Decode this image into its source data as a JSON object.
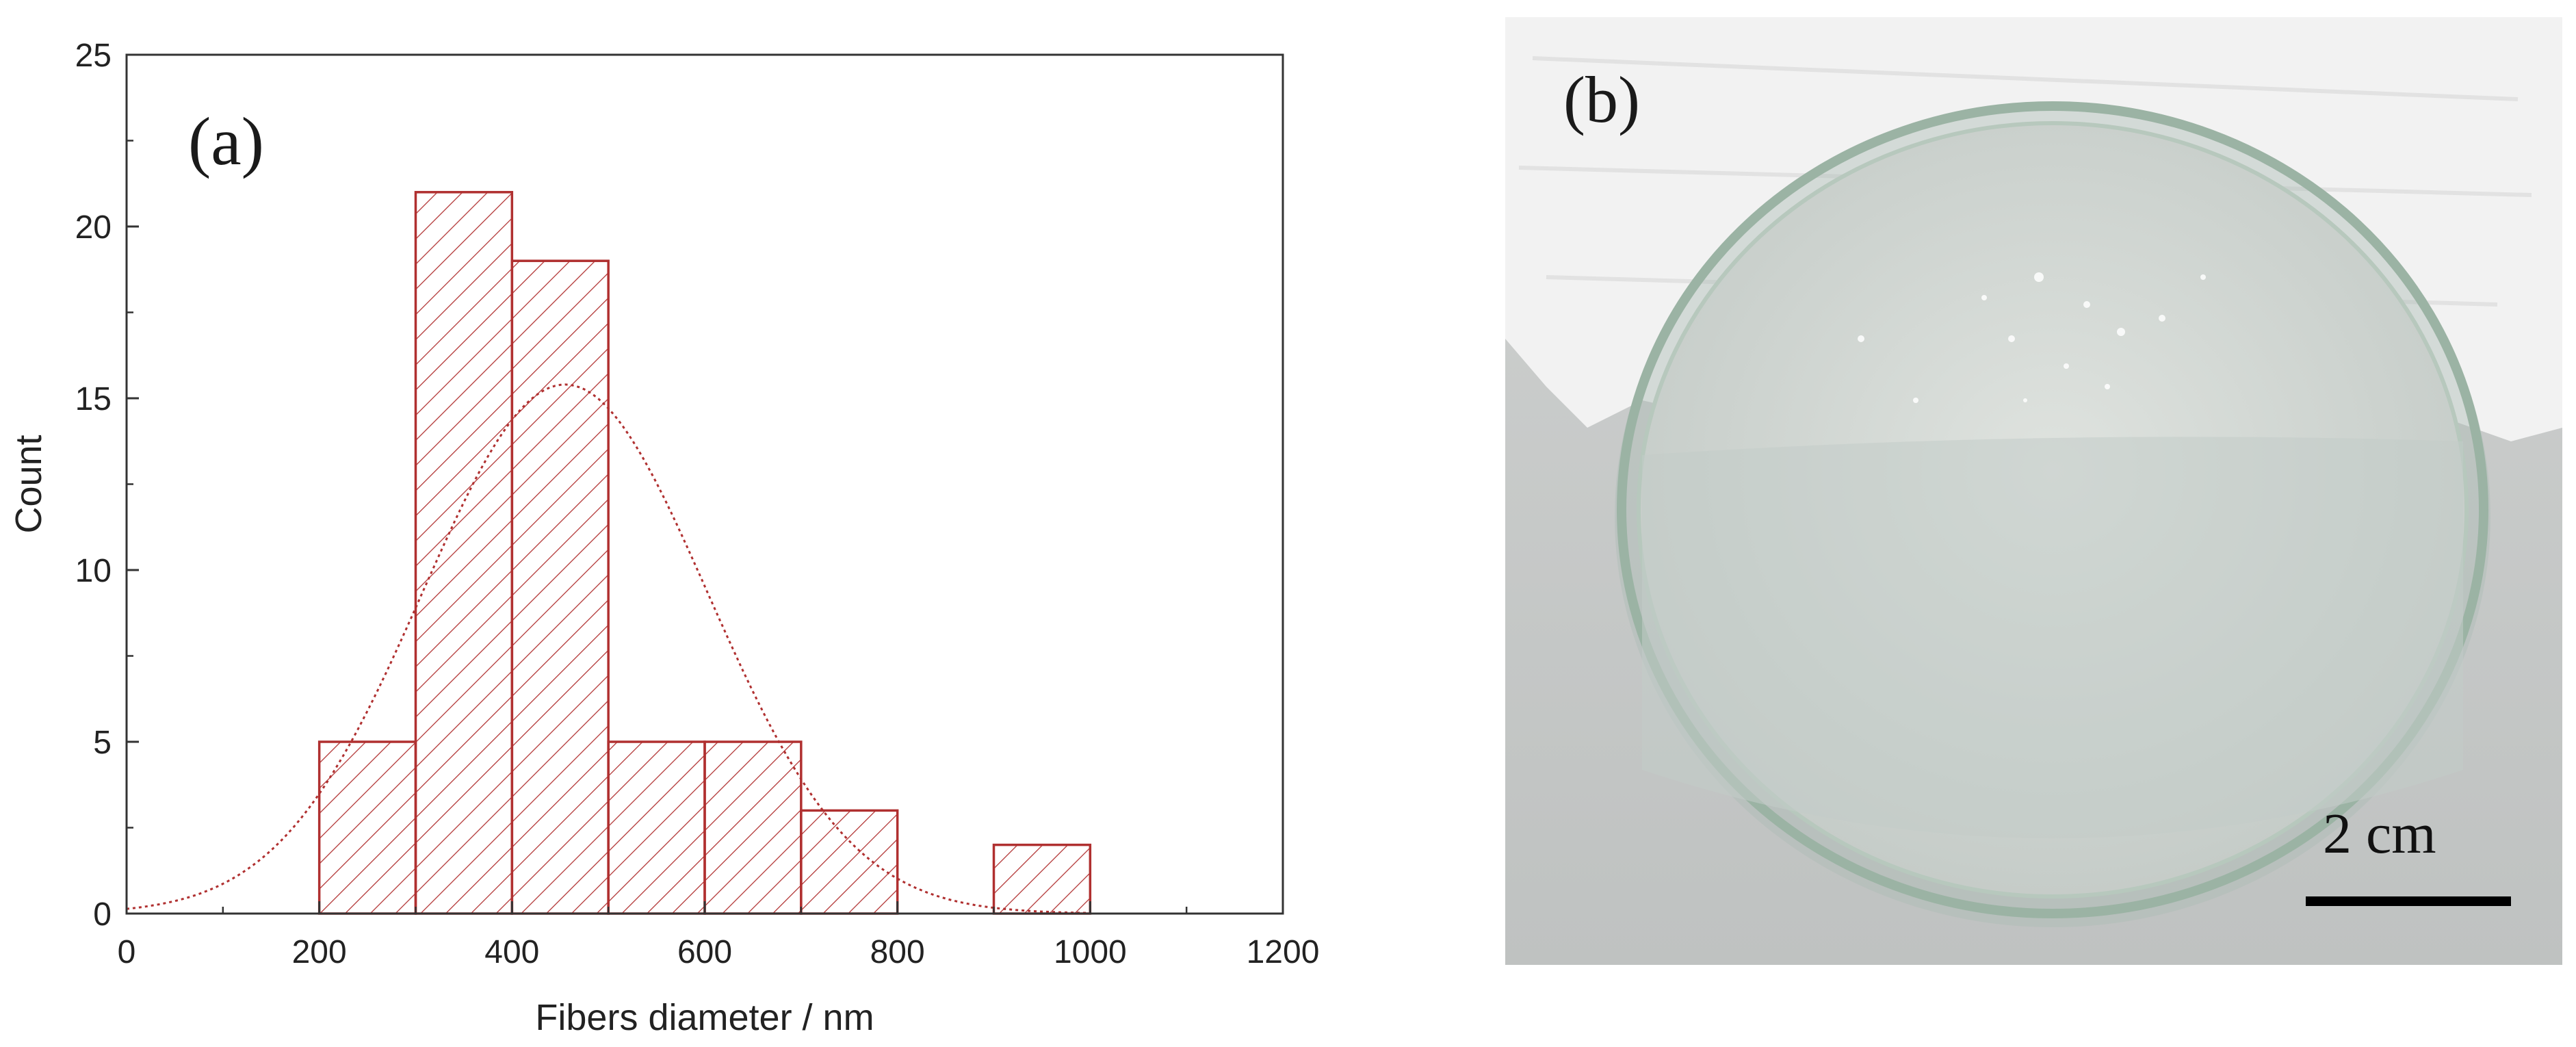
{
  "chart_data": {
    "type": "bar",
    "subtype": "histogram",
    "panel_label": "(a)",
    "title": "",
    "xlabel": "Fibers diameter / nm",
    "ylabel": "Count",
    "xlim": [
      0,
      1200
    ],
    "ylim": [
      0,
      25
    ],
    "xticks": [
      0,
      200,
      400,
      600,
      800,
      1000,
      1200
    ],
    "yticks": [
      0,
      5,
      10,
      15,
      20,
      25
    ],
    "grid": false,
    "legend": "none",
    "bar_color": "#b03030",
    "bins": [
      {
        "start": 200,
        "end": 300,
        "count": 5
      },
      {
        "start": 300,
        "end": 400,
        "count": 21
      },
      {
        "start": 400,
        "end": 500,
        "count": 19
      },
      {
        "start": 500,
        "end": 600,
        "count": 5
      },
      {
        "start": 600,
        "end": 700,
        "count": 5
      },
      {
        "start": 700,
        "end": 800,
        "count": 3
      },
      {
        "start": 900,
        "end": 1000,
        "count": 2
      }
    ],
    "fit_curve": {
      "type": "normal",
      "mean": 455,
      "sd": 148,
      "peak": 15.4
    }
  },
  "photo": {
    "panel_label": "(b)",
    "scale_label": "2 cm"
  }
}
